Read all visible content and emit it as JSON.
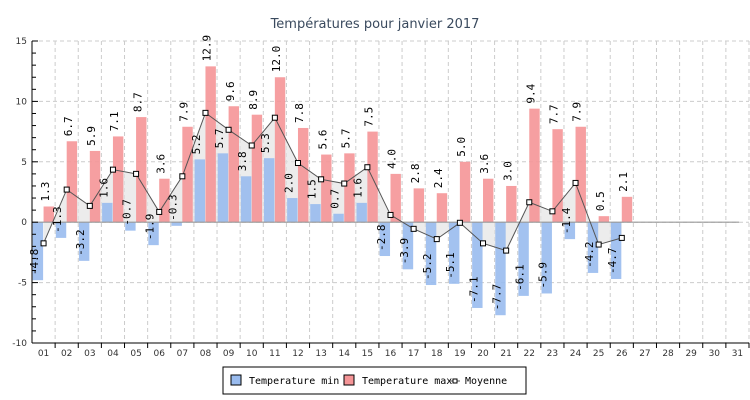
{
  "chart_data": {
    "type": "bar",
    "title": "Températures pour janvier 2017",
    "xlabel": "",
    "ylabel": "",
    "ylim": [
      -10,
      15
    ],
    "yticks": [
      -10,
      -5,
      0,
      5,
      10,
      15
    ],
    "grid": true,
    "legend_position": "bottom-center",
    "categories": [
      "01",
      "02",
      "03",
      "04",
      "05",
      "06",
      "07",
      "08",
      "09",
      "10",
      "11",
      "12",
      "13",
      "14",
      "15",
      "16",
      "17",
      "18",
      "19",
      "20",
      "21",
      "22",
      "23",
      "24",
      "25",
      "26",
      "27",
      "28",
      "29",
      "30",
      "31"
    ],
    "series": [
      {
        "name": "Temperature min",
        "kind": "bar",
        "color": "#99bbee",
        "values": [
          -4.8,
          -1.3,
          -3.2,
          1.6,
          -0.7,
          -1.9,
          -0.3,
          5.2,
          5.7,
          3.8,
          5.3,
          2.0,
          1.5,
          0.7,
          1.6,
          -2.8,
          -3.9,
          -5.2,
          -5.1,
          -7.1,
          -7.7,
          -6.1,
          -5.9,
          -1.4,
          -4.2,
          -4.7,
          null,
          null,
          null,
          null,
          null
        ]
      },
      {
        "name": "Temperature max",
        "kind": "bar",
        "color": "#f59597",
        "values": [
          1.3,
          6.7,
          5.9,
          7.1,
          8.7,
          3.6,
          7.9,
          12.9,
          9.6,
          8.9,
          12.0,
          7.8,
          5.6,
          5.7,
          7.5,
          4.0,
          2.8,
          2.4,
          5.0,
          3.6,
          3.0,
          9.4,
          7.7,
          7.9,
          0.5,
          2.1,
          null,
          null,
          null,
          null,
          null
        ]
      },
      {
        "name": "Moyenne",
        "kind": "line",
        "color": "#555555",
        "values": [
          -1.75,
          2.7,
          1.35,
          4.35,
          4.0,
          0.85,
          3.8,
          9.05,
          7.65,
          6.35,
          8.65,
          4.9,
          3.55,
          3.2,
          4.55,
          0.6,
          -0.55,
          -1.4,
          -0.05,
          -1.75,
          -2.35,
          1.65,
          0.9,
          3.25,
          -1.85,
          -1.3,
          null,
          null,
          null,
          null,
          null
        ]
      }
    ]
  },
  "legend": {
    "items": [
      {
        "label": "Temperature min",
        "color": "#99bbee"
      },
      {
        "label": "Temperature max",
        "color": "#f59597"
      },
      {
        "label": "Moyenne"
      }
    ]
  }
}
